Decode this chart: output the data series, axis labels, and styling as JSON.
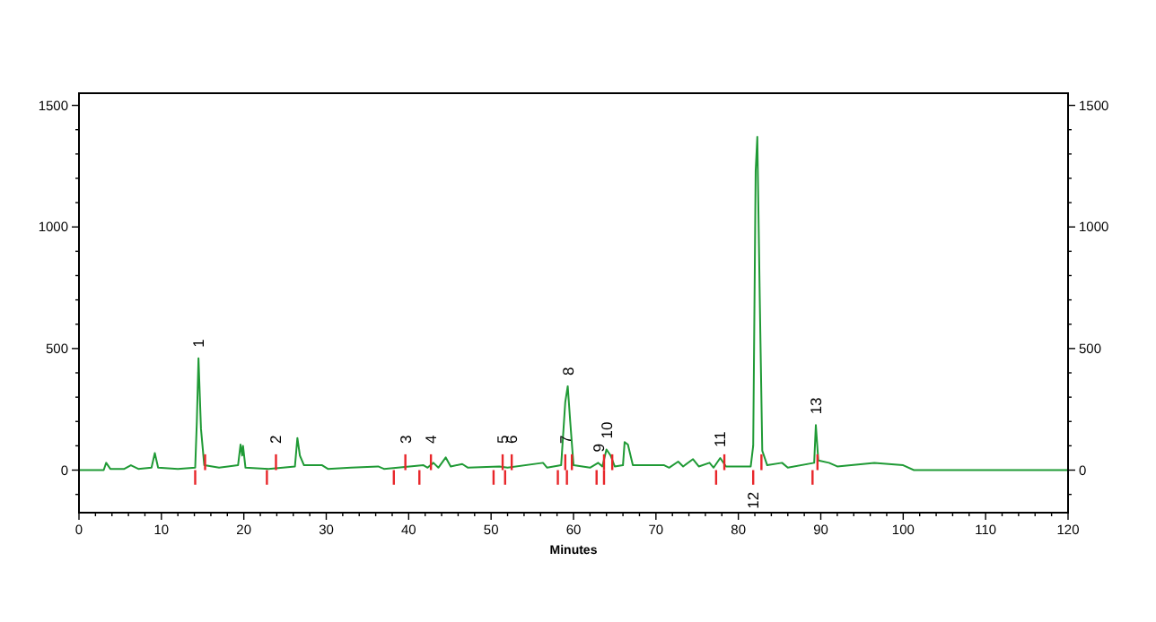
{
  "chart_data": {
    "type": "line",
    "xlabel": "Minutes",
    "xlim": [
      0,
      120
    ],
    "ylim": [
      -175,
      1550
    ],
    "y2lim": [
      -175,
      1550
    ],
    "xticks": [
      0,
      {
        "value": 2,
        "label": null
      },
      {
        "value": 4,
        "label": null
      },
      {
        "value": 6,
        "label": null
      },
      {
        "value": 8,
        "label": null
      },
      10,
      {
        "value": 12,
        "label": null
      },
      {
        "value": 14,
        "label": null
      },
      {
        "value": 16,
        "label": null
      },
      {
        "value": 18,
        "label": null
      },
      20,
      {
        "value": 22,
        "label": null
      },
      {
        "value": 24,
        "label": null
      },
      {
        "value": 26,
        "label": null
      },
      {
        "value": 28,
        "label": null
      },
      30,
      {
        "value": 32,
        "label": null
      },
      {
        "value": 34,
        "label": null
      },
      {
        "value": 36,
        "label": null
      },
      {
        "value": 38,
        "label": null
      },
      40,
      {
        "value": 42,
        "label": null
      },
      {
        "value": 44,
        "label": null
      },
      {
        "value": 46,
        "label": null
      },
      {
        "value": 48,
        "label": null
      },
      50,
      {
        "value": 52,
        "label": null
      },
      {
        "value": 54,
        "label": null
      },
      {
        "value": 56,
        "label": null
      },
      {
        "value": 58,
        "label": null
      },
      60,
      {
        "value": 62,
        "label": null
      },
      {
        "value": 64,
        "label": null
      },
      {
        "value": 66,
        "label": null
      },
      {
        "value": 68,
        "label": null
      },
      70,
      {
        "value": 72,
        "label": null
      },
      {
        "value": 74,
        "label": null
      },
      {
        "value": 76,
        "label": null
      },
      {
        "value": 78,
        "label": null
      },
      80,
      {
        "value": 82,
        "label": null
      },
      {
        "value": 84,
        "label": null
      },
      {
        "value": 86,
        "label": null
      },
      {
        "value": 88,
        "label": null
      },
      90,
      {
        "value": 92,
        "label": null
      },
      {
        "value": 94,
        "label": null
      },
      {
        "value": 96,
        "label": null
      },
      {
        "value": 98,
        "label": null
      },
      100,
      {
        "value": 102,
        "label": null
      },
      {
        "value": 104,
        "label": null
      },
      {
        "value": 106,
        "label": null
      },
      {
        "value": 108,
        "label": null
      },
      110,
      {
        "value": 112,
        "label": null
      },
      {
        "value": 114,
        "label": null
      },
      {
        "value": 116,
        "label": null
      },
      {
        "value": 118,
        "label": null
      },
      120
    ],
    "yticks": [
      {
        "value": -100,
        "label": null
      },
      0,
      {
        "value": 100,
        "label": null
      },
      {
        "value": 200,
        "label": null
      },
      {
        "value": 300,
        "label": null
      },
      {
        "value": 400,
        "label": null
      },
      500,
      {
        "value": 600,
        "label": null
      },
      {
        "value": 700,
        "label": null
      },
      {
        "value": 800,
        "label": null
      },
      {
        "value": 900,
        "label": null
      },
      1000,
      {
        "value": 1100,
        "label": null
      },
      {
        "value": 1200,
        "label": null
      },
      {
        "value": 1300,
        "label": null
      },
      {
        "value": 1400,
        "label": null
      },
      1500
    ],
    "y2ticks": [
      {
        "value": -100,
        "label": null
      },
      0,
      {
        "value": 100,
        "label": null
      },
      {
        "value": 200,
        "label": null
      },
      {
        "value": 300,
        "label": null
      },
      {
        "value": 400,
        "label": null
      },
      500,
      {
        "value": 600,
        "label": null
      },
      {
        "value": 700,
        "label": null
      },
      {
        "value": 800,
        "label": null
      },
      {
        "value": 900,
        "label": null
      },
      1000,
      {
        "value": 1100,
        "label": null
      },
      {
        "value": 1200,
        "label": null
      },
      {
        "value": 1300,
        "label": null
      },
      {
        "value": 1400,
        "label": null
      },
      1500
    ],
    "grid": false,
    "marker": "none",
    "line_style": "solid",
    "series": [
      {
        "color": "#1f9a35",
        "x": [
          0,
          3,
          3.3,
          3.8,
          5.5,
          6.3,
          7.2,
          8.8,
          9.2,
          9.6,
          12,
          14.1,
          14.3,
          14.5,
          14.8,
          15.2,
          17,
          19.3,
          19.6,
          19.8,
          19.9,
          20.2,
          23,
          26.2,
          26.5,
          26.8,
          27.3,
          29.5,
          30.2,
          33,
          36.3,
          37,
          41.8,
          42.3,
          43,
          43.6,
          44.5,
          45.1,
          46.5,
          47.2,
          51,
          52,
          56.3,
          56.8,
          58.5,
          59,
          59.3,
          59.6,
          60,
          62,
          63,
          63.5,
          64,
          64.5,
          65,
          66,
          66.2,
          66.6,
          67.2,
          71,
          71.6,
          72.7,
          73.3,
          74.5,
          75.2,
          76.5,
          77,
          77.8,
          78.5,
          81.5,
          81.8,
          82.1,
          82.3,
          82.6,
          82.9,
          83.5,
          85.3,
          86,
          89.2,
          89.4,
          89.7,
          91,
          92,
          96.5,
          100,
          101.3,
          120
        ],
        "values": [
          0,
          0,
          30,
          5,
          5,
          20,
          5,
          10,
          70,
          10,
          5,
          10,
          200,
          460,
          170,
          20,
          10,
          20,
          105,
          60,
          100,
          10,
          5,
          15,
          132,
          60,
          20,
          20,
          5,
          10,
          15,
          5,
          20,
          10,
          30,
          10,
          52,
          15,
          25,
          10,
          15,
          10,
          30,
          10,
          20,
          280,
          345,
          200,
          20,
          10,
          30,
          15,
          85,
          60,
          15,
          20,
          115,
          105,
          20,
          20,
          10,
          35,
          15,
          45,
          15,
          30,
          10,
          50,
          15,
          15,
          100,
          1230,
          1370,
          700,
          80,
          20,
          30,
          10,
          30,
          185,
          40,
          30,
          15,
          30,
          20,
          0,
          0
        ]
      },
      {
        "type": "bar",
        "color": "#e8262a",
        "x": [
          14.1,
          22.8,
          38.2,
          41.3,
          50.3,
          51.7,
          58.1,
          59.2,
          62.8,
          63.7,
          77.3,
          81.8,
          89.0
        ],
        "base": [
          -60,
          -60,
          -60,
          -60,
          -60,
          -60,
          -60,
          -60,
          -60,
          -60,
          -60,
          -60,
          -60
        ],
        "values": [
          60,
          60,
          60,
          60,
          60,
          60,
          60,
          60,
          60,
          60,
          60,
          60,
          60
        ]
      },
      {
        "type": "bar",
        "color": "#e8262a",
        "x": [
          15.3,
          23.9,
          39.6,
          42.7,
          51.4,
          52.5,
          59.0,
          59.8,
          63.7,
          64.7,
          78.3,
          82.8,
          89.6
        ],
        "base": [
          0,
          0,
          0,
          0,
          0,
          0,
          0,
          0,
          0,
          0,
          0,
          0,
          0
        ],
        "values": [
          65,
          65,
          65,
          65,
          65,
          65,
          65,
          65,
          65,
          65,
          65,
          65,
          65
        ]
      }
    ],
    "annotations": [
      {
        "text": "1",
        "x": 14.5,
        "y": 460
      },
      {
        "text": "2",
        "x": 23.9,
        "y": 65
      },
      {
        "text": "3",
        "x": 39.6,
        "y": 65
      },
      {
        "text": "4",
        "x": 42.7,
        "y": 65
      },
      {
        "text": "5",
        "x": 51.4,
        "y": 65
      },
      {
        "text": "6",
        "x": 52.5,
        "y": 65
      },
      {
        "text": "7",
        "x": 59.0,
        "y": 65
      },
      {
        "text": "8",
        "x": 59.3,
        "y": 345
      },
      {
        "text": "9",
        "x": 63,
        "y": 30
      },
      {
        "text": "10",
        "x": 64,
        "y": 85
      },
      {
        "text": "11",
        "x": 77.8,
        "y": 50
      },
      {
        "text": "12",
        "x": 81.8,
        "y": -60
      },
      {
        "text": "13",
        "x": 89.4,
        "y": 185
      }
    ]
  }
}
